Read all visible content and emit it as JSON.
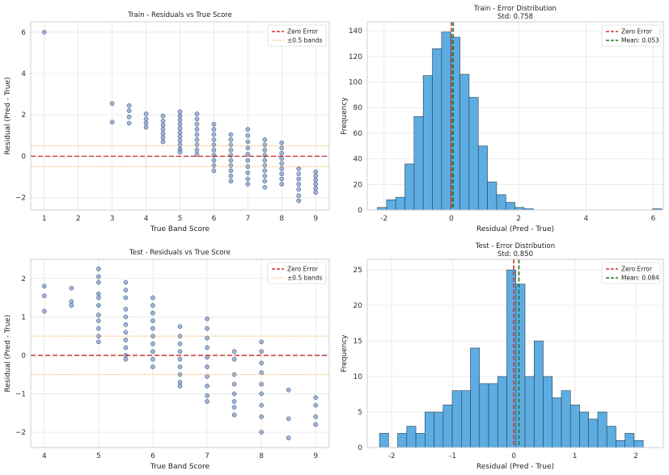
{
  "chart_data": [
    {
      "id": "train_resid",
      "type": "scatter",
      "title": "Train - Residuals vs True Score",
      "xlabel": "True Band Score",
      "ylabel": "Residual (Pred - True)",
      "xlim": [
        0.6,
        9.4
      ],
      "ylim": [
        -2.6,
        6.5
      ],
      "xticks": [
        1,
        2,
        3,
        4,
        5,
        6,
        7,
        8,
        9
      ],
      "yticks": [
        -2,
        0,
        2,
        4,
        6
      ],
      "hlines": [
        {
          "y": 0,
          "color": "#cc3333",
          "style": "dashed",
          "label": "Zero Error"
        },
        {
          "y": 0.5,
          "color": "#f2a93b",
          "style": "dotted",
          "label": "±0.5 bands"
        },
        {
          "y": -0.5,
          "color": "#f2a93b",
          "style": "dotted",
          "label": ""
        }
      ],
      "legend": [
        "Zero Error",
        "±0.5 bands"
      ],
      "groups": [
        {
          "x": 1.0,
          "ys": [
            6.0
          ]
        },
        {
          "x": 3.0,
          "ys": [
            2.55,
            1.65
          ]
        },
        {
          "x": 3.5,
          "ys": [
            2.45,
            2.2,
            1.9,
            1.6
          ]
        },
        {
          "x": 4.0,
          "ys": [
            2.05,
            1.8,
            1.6,
            1.4
          ]
        },
        {
          "x": 4.5,
          "ys": [
            1.95,
            1.7,
            1.5,
            1.3,
            1.1,
            0.9,
            0.7
          ]
        },
        {
          "x": 5.0,
          "ys": [
            2.15,
            1.95,
            1.75,
            1.55,
            1.35,
            1.15,
            0.95,
            0.75,
            0.55,
            0.35,
            0.2
          ]
        },
        {
          "x": 5.5,
          "ys": [
            2.05,
            1.8,
            1.55,
            1.3,
            1.05,
            0.8,
            0.55,
            0.3,
            0.1
          ]
        },
        {
          "x": 6.0,
          "ys": [
            1.55,
            1.3,
            1.05,
            0.8,
            0.55,
            0.3,
            0.05,
            -0.2,
            -0.45,
            -0.7
          ]
        },
        {
          "x": 6.5,
          "ys": [
            1.05,
            0.8,
            0.55,
            0.3,
            0.05,
            -0.2,
            -0.45,
            -0.7,
            -0.95,
            -1.2
          ]
        },
        {
          "x": 7.0,
          "ys": [
            1.3,
            1.0,
            0.7,
            0.4,
            0.1,
            -0.2,
            -0.5,
            -0.8,
            -1.1,
            -1.35
          ]
        },
        {
          "x": 7.5,
          "ys": [
            0.8,
            0.55,
            0.3,
            0.05,
            -0.2,
            -0.45,
            -0.7,
            -0.95,
            -1.2,
            -1.5
          ]
        },
        {
          "x": 8.0,
          "ys": [
            0.65,
            0.4,
            0.15,
            -0.1,
            -0.35,
            -0.6,
            -0.85,
            -1.1,
            -1.35
          ]
        },
        {
          "x": 8.5,
          "ys": [
            -0.6,
            -0.85,
            -1.1,
            -1.35,
            -1.6,
            -1.9,
            -2.15
          ]
        },
        {
          "x": 9.0,
          "ys": [
            -0.75,
            -0.95,
            -1.15,
            -1.35,
            -1.55,
            -1.75
          ]
        }
      ]
    },
    {
      "id": "train_hist",
      "type": "bar",
      "title": "Train - Error Distribution",
      "subtitle": "Std: 0.758",
      "xlabel": "Residual (Pred - True)",
      "ylabel": "Frequency",
      "xlim": [
        -2.5,
        6.3
      ],
      "ylim": [
        0,
        147
      ],
      "xticks": [
        -2,
        0,
        2,
        4,
        6
      ],
      "yticks": [
        0,
        20,
        40,
        60,
        80,
        100,
        120,
        140
      ],
      "bin_start": -2.2,
      "bin_width": 0.2727,
      "values": [
        2,
        8,
        10,
        36,
        73,
        105,
        126,
        139,
        135,
        106,
        88,
        50,
        22,
        12,
        6,
        2,
        1,
        0,
        0,
        0,
        0,
        0,
        0,
        0,
        0,
        0,
        0,
        0,
        0,
        0,
        1
      ],
      "vlines": [
        {
          "x": 0,
          "color": "#cc3333",
          "style": "dashed",
          "label": "Zero Error"
        },
        {
          "x": 0.053,
          "color": "#1a7a1a",
          "style": "dashed",
          "label": "Mean: 0.053"
        }
      ],
      "legend": [
        "Zero Error",
        "Mean: 0.053"
      ]
    },
    {
      "id": "test_resid",
      "type": "scatter",
      "title": "Test - Residuals vs True Score",
      "xlabel": "True Band Score",
      "ylabel": "Residual (Pred - True)",
      "xlim": [
        3.75,
        9.25
      ],
      "ylim": [
        -2.4,
        2.5
      ],
      "xticks": [
        4,
        5,
        6,
        7,
        8,
        9
      ],
      "yticks": [
        -2,
        -1,
        0,
        1,
        2
      ],
      "hlines": [
        {
          "y": 0,
          "color": "#cc3333",
          "style": "dashed",
          "label": "Zero Error"
        },
        {
          "y": 0.5,
          "color": "#f2a93b",
          "style": "dotted",
          "label": "±0.5 bands"
        },
        {
          "y": -0.5,
          "color": "#f2a93b",
          "style": "dotted",
          "label": ""
        }
      ],
      "legend": [
        "Zero Error",
        "±0.5 bands"
      ],
      "groups": [
        {
          "x": 4.0,
          "ys": [
            1.8,
            1.55,
            1.15
          ]
        },
        {
          "x": 4.5,
          "ys": [
            1.75,
            1.4,
            1.3
          ]
        },
        {
          "x": 5.0,
          "ys": [
            2.25,
            2.05,
            1.9,
            1.6,
            1.5,
            1.3,
            1.05,
            0.9,
            0.7,
            0.5,
            0.35
          ]
        },
        {
          "x": 5.5,
          "ys": [
            1.9,
            1.7,
            1.5,
            1.2,
            1.0,
            0.8,
            0.6,
            0.4,
            0.2,
            0.0,
            -0.1
          ]
        },
        {
          "x": 6.0,
          "ys": [
            1.5,
            1.3,
            1.1,
            0.9,
            0.7,
            0.5,
            0.3,
            0.1,
            -0.1,
            -0.3
          ]
        },
        {
          "x": 6.5,
          "ys": [
            0.75,
            0.5,
            0.3,
            0.1,
            -0.1,
            -0.3,
            -0.5,
            -0.7,
            -0.8
          ]
        },
        {
          "x": 7.0,
          "ys": [
            0.95,
            0.7,
            0.45,
            0.2,
            -0.05,
            -0.3,
            -0.55,
            -0.8,
            -1.05,
            -1.2
          ]
        },
        {
          "x": 7.5,
          "ys": [
            0.1,
            -0.1,
            -0.5,
            -0.75,
            -1.0,
            -1.2,
            -1.35,
            -1.55
          ]
        },
        {
          "x": 8.0,
          "ys": [
            0.35,
            0.1,
            -0.2,
            -0.45,
            -0.75,
            -1.0,
            -1.3,
            -1.6,
            -2.0
          ]
        },
        {
          "x": 8.5,
          "ys": [
            -0.9,
            -1.65,
            -2.15
          ]
        },
        {
          "x": 9.0,
          "ys": [
            -1.1,
            -1.3,
            -1.6,
            -1.8
          ]
        }
      ]
    },
    {
      "id": "test_hist",
      "type": "bar",
      "title": "Test - Error Distribution",
      "subtitle": "Std: 0.850",
      "xlabel": "Residual (Pred - True)",
      "ylabel": "Frequency",
      "xlim": [
        -2.4,
        2.45
      ],
      "ylim": [
        0,
        26.5
      ],
      "xticks": [
        -2,
        -1,
        0,
        1,
        2
      ],
      "yticks": [
        0,
        5,
        10,
        15,
        20,
        25
      ],
      "bin_start": -2.2,
      "bin_width": 0.149,
      "values": [
        2,
        0,
        2,
        3,
        2,
        5,
        5,
        6,
        8,
        8,
        14,
        9,
        9,
        10,
        25,
        23,
        10,
        15,
        10,
        7,
        8,
        6,
        5,
        4,
        5,
        3,
        1,
        2,
        1
      ],
      "vlines": [
        {
          "x": 0,
          "color": "#cc3333",
          "style": "dashed",
          "label": "Zero Error"
        },
        {
          "x": 0.084,
          "color": "#1a7a1a",
          "style": "dashed",
          "label": "Mean: 0.084"
        }
      ],
      "legend": [
        "Zero Error",
        "Mean: 0.084"
      ]
    }
  ]
}
